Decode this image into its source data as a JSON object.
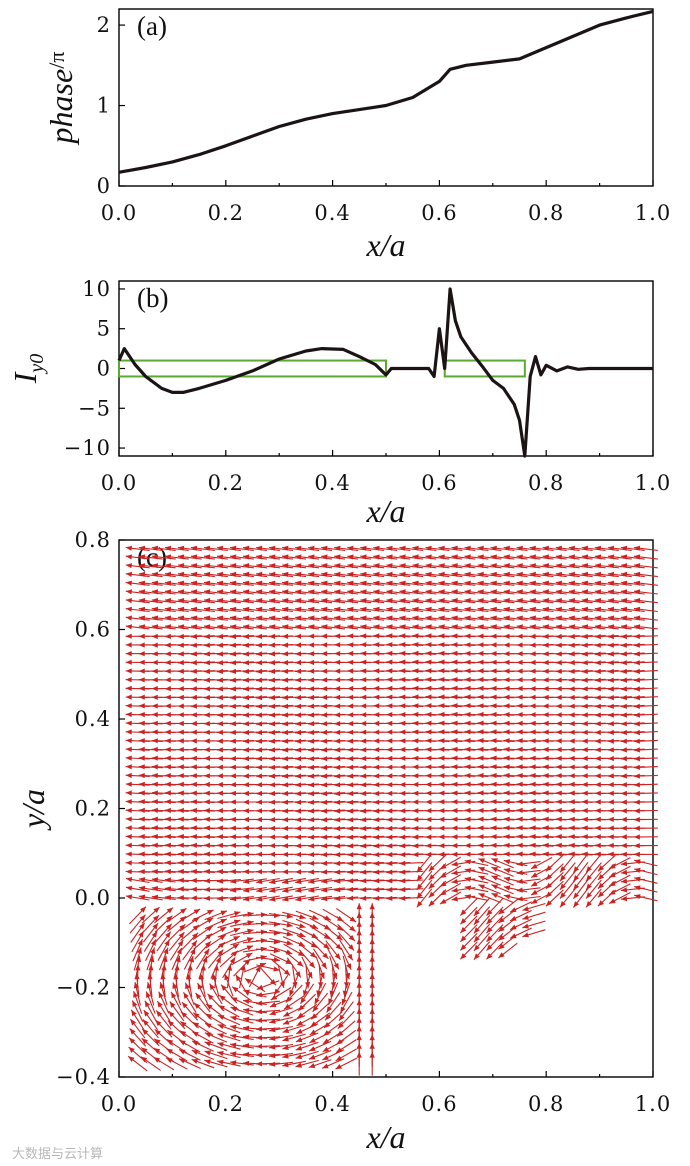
{
  "chart_data": [
    {
      "id": "a",
      "type": "line",
      "panel_label": "(a)",
      "xlabel": "x/a",
      "ylabel": "phase/π",
      "ylabel_main": "phase",
      "ylabel_sub": "/π",
      "xlim": [
        0,
        1.0
      ],
      "ylim": [
        0,
        2.2
      ],
      "xticks": [
        "0.0",
        "0.2",
        "0.4",
        "0.6",
        "0.8",
        "1.0"
      ],
      "yticks": [
        "0",
        "1",
        "2"
      ],
      "series": [
        {
          "name": "phase",
          "x": [
            0,
            0.05,
            0.1,
            0.15,
            0.2,
            0.25,
            0.3,
            0.35,
            0.4,
            0.45,
            0.5,
            0.55,
            0.6,
            0.62,
            0.65,
            0.7,
            0.75,
            0.8,
            0.85,
            0.9,
            0.95,
            1.0
          ],
          "y": [
            0.17,
            0.23,
            0.3,
            0.39,
            0.5,
            0.62,
            0.74,
            0.83,
            0.9,
            0.95,
            1.0,
            1.1,
            1.3,
            1.45,
            1.5,
            1.54,
            1.58,
            1.72,
            1.86,
            2.0,
            2.09,
            2.17
          ]
        }
      ]
    },
    {
      "id": "b",
      "type": "line",
      "panel_label": "(b)",
      "xlabel": "x/a",
      "ylabel": "Iy0",
      "ylabel_main": "I",
      "ylabel_sub": "y0",
      "xlim": [
        0,
        1.0
      ],
      "ylim": [
        -11,
        11
      ],
      "xticks": [
        "0.0",
        "0.2",
        "0.4",
        "0.6",
        "0.8",
        "1.0"
      ],
      "yticks": [
        "10",
        "5",
        "0",
        "−5",
        "−10"
      ],
      "series": [
        {
          "name": "Iy0",
          "x": [
            0,
            0.01,
            0.02,
            0.03,
            0.05,
            0.08,
            0.1,
            0.12,
            0.15,
            0.2,
            0.25,
            0.3,
            0.35,
            0.38,
            0.42,
            0.45,
            0.48,
            0.5,
            0.51,
            0.55,
            0.58,
            0.59,
            0.6,
            0.61,
            0.62,
            0.63,
            0.64,
            0.66,
            0.68,
            0.7,
            0.72,
            0.74,
            0.75,
            0.76,
            0.77,
            0.78,
            0.79,
            0.8,
            0.82,
            0.84,
            0.86,
            0.88,
            0.9,
            0.95,
            1.0
          ],
          "y": [
            1.0,
            2.5,
            1.5,
            0.5,
            -1.0,
            -2.5,
            -3.0,
            -3.0,
            -2.5,
            -1.5,
            -0.3,
            1.2,
            2.2,
            2.5,
            2.4,
            1.5,
            0.5,
            -0.8,
            0.0,
            0.0,
            0.0,
            -1.0,
            5.0,
            0.0,
            10.0,
            6.0,
            4.0,
            2.0,
            0.3,
            -1.5,
            -2.5,
            -4.5,
            -6.5,
            -11.0,
            -1.0,
            1.5,
            -0.8,
            0.4,
            -0.3,
            0.2,
            -0.1,
            0.0,
            0.0,
            0.0,
            0.0
          ]
        }
      ],
      "rectangles": [
        {
          "x": [
            0,
            0.5
          ],
          "y": [
            -1,
            1
          ]
        },
        {
          "x": [
            0.61,
            0.76
          ],
          "y": [
            -1,
            1
          ]
        }
      ]
    },
    {
      "id": "c",
      "type": "quiver",
      "panel_label": "(c)",
      "xlabel": "x/a",
      "ylabel": "y/a",
      "xlim": [
        0,
        1.0
      ],
      "ylim": [
        -0.4,
        0.8
      ],
      "xticks": [
        "0.0",
        "0.2",
        "0.4",
        "0.6",
        "0.8",
        "1.0"
      ],
      "yticks": [
        "0.8",
        "0.6",
        "0.4",
        "0.2",
        "0.0",
        "−0.2",
        "−0.4"
      ],
      "arrow_color": "#cc2222",
      "regions": [
        {
          "name": "upper-field",
          "x": [
            0.03,
            1.0
          ],
          "y": [
            0.0,
            0.8
          ],
          "flow": "leftward"
        },
        {
          "name": "lower-left-vortex",
          "x": [
            0.03,
            0.5
          ],
          "y": [
            -0.37,
            -0.03
          ],
          "center": [
            0.27,
            -0.18
          ],
          "flow": "clockwise"
        },
        {
          "name": "lower-middle-pocket",
          "x": [
            0.65,
            0.78
          ],
          "y": [
            -0.12,
            -0.02
          ],
          "flow": "leftward-downward"
        }
      ]
    }
  ],
  "watermark": "大数据与云计算"
}
